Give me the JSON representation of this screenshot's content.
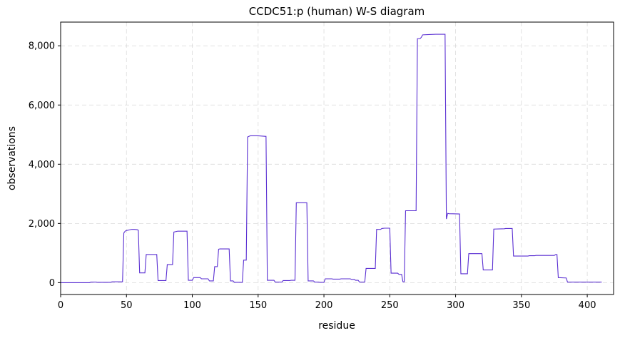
{
  "chart_data": {
    "type": "line",
    "title": "CCDC51:p (human) W-S diagram",
    "xlabel": "residue",
    "ylabel": "observations",
    "xlim": [
      0,
      420
    ],
    "ylim": [
      -400,
      8800
    ],
    "xticks": [
      0,
      50,
      100,
      150,
      200,
      250,
      300,
      350,
      400
    ],
    "yticks": [
      0,
      2000,
      4000,
      6000,
      8000
    ],
    "ytick_labels": [
      "0",
      "2,000",
      "4,000",
      "6,000",
      "8,000"
    ],
    "grid": true,
    "color": "#5a2fd2",
    "series": [
      {
        "x": [
          0,
          22,
          23,
          27,
          28,
          38,
          39,
          47,
          48,
          49,
          50,
          52,
          54,
          56,
          58,
          59,
          60,
          64,
          65,
          73,
          74,
          80,
          81,
          85,
          86,
          88,
          89,
          96,
          97,
          100,
          101,
          106,
          107,
          112,
          113,
          116,
          117,
          119,
          120,
          121,
          122,
          128,
          129,
          131,
          132,
          138,
          139,
          141,
          142,
          143,
          144,
          150,
          156,
          157,
          162,
          163,
          168,
          169,
          174,
          175,
          178,
          179,
          187,
          188,
          192,
          193,
          196,
          197,
          200,
          201,
          206,
          207,
          212,
          213,
          220,
          221,
          223,
          224,
          226,
          227,
          231,
          232,
          239,
          240,
          243,
          244,
          246,
          250,
          251,
          256,
          257,
          259,
          260,
          261,
          262,
          270,
          271,
          273,
          274,
          275,
          280,
          285,
          290,
          292,
          293,
          294,
          295,
          303,
          304,
          309,
          310,
          320,
          321,
          328,
          329,
          337,
          338,
          343,
          344,
          355,
          356,
          360,
          361,
          370,
          371,
          375,
          376,
          377,
          378,
          383,
          384,
          385,
          411
        ],
        "y": [
          0,
          0,
          20,
          20,
          10,
          10,
          30,
          30,
          1680,
          1740,
          1760,
          1780,
          1800,
          1800,
          1790,
          1770,
          330,
          330,
          950,
          950,
          70,
          70,
          610,
          610,
          1710,
          1730,
          1740,
          1740,
          80,
          80,
          170,
          170,
          130,
          130,
          60,
          60,
          540,
          540,
          1130,
          1140,
          1140,
          1140,
          60,
          60,
          10,
          10,
          760,
          760,
          4920,
          4940,
          4960,
          4960,
          4940,
          80,
          80,
          20,
          20,
          70,
          70,
          80,
          80,
          2700,
          2700,
          60,
          60,
          20,
          20,
          10,
          10,
          130,
          130,
          120,
          120,
          130,
          130,
          110,
          110,
          80,
          80,
          20,
          20,
          480,
          480,
          1800,
          1800,
          1830,
          1840,
          1840,
          320,
          320,
          280,
          280,
          30,
          30,
          2430,
          2430,
          8240,
          8240,
          8290,
          8370,
          8380,
          8390,
          8390,
          8390,
          2150,
          2340,
          2330,
          2320,
          300,
          300,
          980,
          980,
          430,
          430,
          1810,
          1820,
          1830,
          1830,
          900,
          900,
          910,
          910,
          920,
          920,
          920,
          920,
          950,
          950,
          170,
          160,
          160,
          20,
          20
        ]
      }
    ]
  }
}
